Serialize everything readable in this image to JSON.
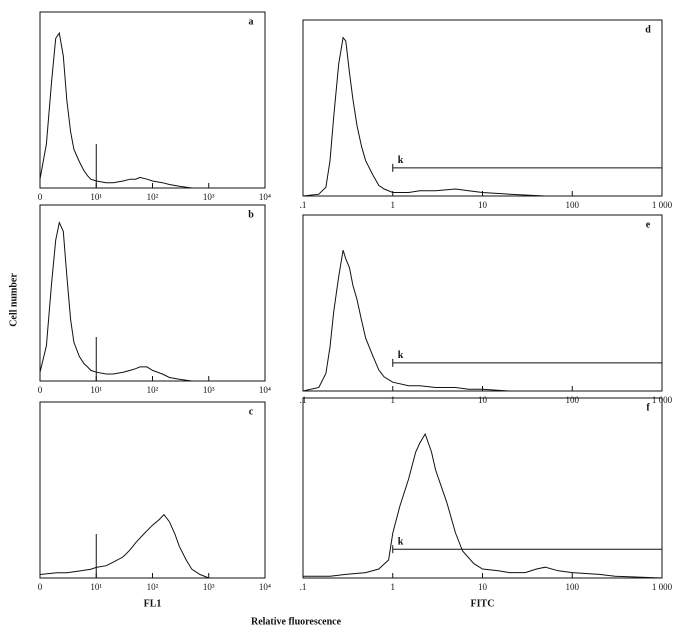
{
  "figure": {
    "ylabel": "Cell number",
    "xlabel": "Relative fluorescence"
  },
  "chart_data": [
    {
      "type": "line",
      "label": "a",
      "log_x": true,
      "color": "#111111",
      "x": [
        1,
        1.3,
        1.6,
        1.9,
        2.2,
        2.6,
        3,
        3.5,
        4,
        5,
        6,
        7,
        8,
        10,
        15,
        20,
        30,
        40,
        50,
        60,
        80,
        100,
        150,
        200,
        300,
        500,
        1000,
        10000
      ],
      "values": [
        5,
        25,
        60,
        85,
        88,
        75,
        50,
        32,
        22,
        15,
        10,
        7,
        5,
        4,
        3,
        3,
        4,
        5,
        5,
        6,
        5,
        4,
        3,
        2,
        1,
        0,
        0,
        0
      ],
      "xlim": [
        1,
        10000
      ],
      "ylim": [
        0,
        100
      ],
      "xticks": [
        {
          "value": 1,
          "label": "0"
        },
        {
          "value": 10,
          "label": "10¹"
        },
        {
          "value": 100,
          "label": "10²"
        },
        {
          "value": 1000,
          "label": "10³"
        },
        {
          "value": 10000,
          "label": "10⁴"
        }
      ],
      "marker_x": 10
    },
    {
      "type": "line",
      "label": "b",
      "log_x": true,
      "color": "#111111",
      "x": [
        1,
        1.3,
        1.6,
        1.9,
        2.2,
        2.6,
        3,
        3.5,
        4,
        5,
        6,
        7,
        8,
        10,
        15,
        20,
        30,
        40,
        50,
        60,
        80,
        100,
        150,
        200,
        300,
        500,
        1000,
        10000
      ],
      "values": [
        5,
        20,
        55,
        80,
        90,
        85,
        60,
        35,
        22,
        14,
        10,
        8,
        6,
        5,
        4,
        4,
        5,
        6,
        7,
        8,
        8,
        6,
        4,
        2,
        1,
        0,
        0,
        0
      ],
      "xlim": [
        1,
        10000
      ],
      "ylim": [
        0,
        100
      ],
      "xticks": [
        {
          "value": 1,
          "label": "0"
        },
        {
          "value": 10,
          "label": "10¹"
        },
        {
          "value": 100,
          "label": "10²"
        },
        {
          "value": 1000,
          "label": "10³"
        },
        {
          "value": 10000,
          "label": "10⁴"
        }
      ],
      "marker_x": 10
    },
    {
      "type": "line",
      "label": "c",
      "log_x": true,
      "color": "#111111",
      "x": [
        1,
        2,
        3,
        5,
        8,
        10,
        15,
        20,
        30,
        40,
        50,
        70,
        100,
        130,
        160,
        200,
        250,
        300,
        400,
        500,
        700,
        1000,
        10000
      ],
      "values": [
        2,
        3,
        3,
        4,
        5,
        6,
        7,
        9,
        12,
        16,
        20,
        25,
        30,
        33,
        36,
        32,
        25,
        18,
        10,
        5,
        2,
        0,
        0
      ],
      "xlim": [
        1,
        10000
      ],
      "ylim": [
        0,
        100
      ],
      "xticks": [
        {
          "value": 1,
          "label": "0"
        },
        {
          "value": 10,
          "label": "10¹"
        },
        {
          "value": 100,
          "label": "10²"
        },
        {
          "value": 1000,
          "label": "10³"
        },
        {
          "value": 10000,
          "label": "10⁴"
        }
      ],
      "marker_x": 10,
      "xlabel": "FL1"
    },
    {
      "type": "line",
      "label": "d",
      "log_x": true,
      "color": "#111111",
      "x": [
        0.1,
        0.15,
        0.18,
        0.2,
        0.22,
        0.25,
        0.28,
        0.3,
        0.33,
        0.36,
        0.4,
        0.45,
        0.5,
        0.6,
        0.7,
        0.8,
        1,
        1.5,
        2,
        3,
        5,
        7,
        10,
        20,
        50,
        100,
        1000
      ],
      "values": [
        0,
        1,
        5,
        20,
        45,
        75,
        90,
        88,
        70,
        55,
        40,
        28,
        20,
        12,
        6,
        4,
        2,
        2,
        3,
        3,
        4,
        3,
        2,
        1,
        0,
        0,
        0
      ],
      "xlim": [
        0.1,
        1000
      ],
      "ylim": [
        0,
        100
      ],
      "xticks": [
        {
          "value": 0.1,
          "label": ".1"
        },
        1,
        10,
        100,
        {
          "value": 1000,
          "label": "1 000"
        }
      ],
      "gate": {
        "label": "k",
        "range": [
          1,
          1000
        ]
      }
    },
    {
      "type": "line",
      "label": "e",
      "log_x": true,
      "color": "#111111",
      "x": [
        0.1,
        0.15,
        0.18,
        0.2,
        0.22,
        0.25,
        0.28,
        0.3,
        0.33,
        0.36,
        0.4,
        0.45,
        0.5,
        0.6,
        0.7,
        0.8,
        1,
        1.5,
        2,
        3,
        5,
        7,
        10,
        20,
        50,
        100,
        1000
      ],
      "values": [
        0,
        2,
        10,
        25,
        45,
        65,
        80,
        75,
        70,
        60,
        52,
        40,
        30,
        20,
        12,
        8,
        5,
        3,
        3,
        2,
        2,
        1,
        1,
        0,
        0,
        0,
        0
      ],
      "xlim": [
        0.1,
        1000
      ],
      "ylim": [
        0,
        100
      ],
      "xticks": [
        {
          "value": 0.1,
          "label": ".1"
        },
        1,
        10,
        100,
        {
          "value": 1000,
          "label": "1 000"
        }
      ],
      "gate": {
        "label": "k",
        "range": [
          1,
          1000
        ]
      }
    },
    {
      "type": "line",
      "label": "f",
      "log_x": true,
      "color": "#111111",
      "x": [
        0.1,
        0.2,
        0.3,
        0.5,
        0.7,
        0.9,
        1,
        1.2,
        1.5,
        1.8,
        2,
        2.3,
        2.7,
        3,
        4,
        5,
        6,
        8,
        10,
        15,
        20,
        30,
        40,
        50,
        70,
        100,
        200,
        300,
        1000
      ],
      "values": [
        1,
        1,
        2,
        3,
        5,
        10,
        25,
        40,
        55,
        70,
        75,
        80,
        70,
        60,
        42,
        25,
        15,
        8,
        5,
        4,
        3,
        3,
        5,
        6,
        4,
        3,
        2,
        1,
        0
      ],
      "xlim": [
        0.1,
        1000
      ],
      "ylim": [
        0,
        100
      ],
      "xticks": [
        {
          "value": 0.1,
          "label": ".1"
        },
        1,
        10,
        100,
        {
          "value": 1000,
          "label": "1 000"
        }
      ],
      "gate": {
        "label": "k",
        "range": [
          1,
          1000
        ]
      },
      "xlabel": "FITC"
    }
  ]
}
